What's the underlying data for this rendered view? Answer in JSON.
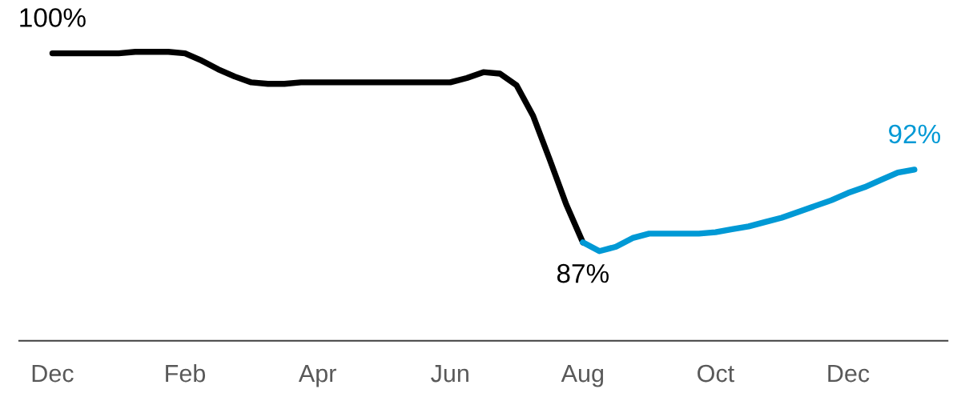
{
  "chart_data": {
    "type": "line",
    "categories": [
      "Dec",
      null,
      null,
      null,
      null,
      null,
      null,
      null,
      "Feb",
      null,
      null,
      null,
      null,
      null,
      null,
      null,
      "Apr",
      null,
      null,
      null,
      null,
      null,
      null,
      null,
      "Jun",
      null,
      null,
      null,
      null,
      null,
      null,
      null,
      "Aug",
      null,
      null,
      null,
      null,
      null,
      null,
      null,
      "Oct",
      null,
      null,
      null,
      null,
      null,
      null,
      null,
      "Dec",
      null,
      null,
      null,
      null
    ],
    "series": [
      {
        "color": "#000000",
        "values": [
          100,
          100,
          100,
          100,
          100,
          100.1,
          100.1,
          100.1,
          100.0,
          99.5,
          98.9,
          98.4,
          98.0,
          97.9,
          97.9,
          98.0,
          98.0,
          98.0,
          98.0,
          98.0,
          98.0,
          98.0,
          98.0,
          98.0,
          98.0,
          98.3,
          98.7,
          98.6,
          97.8,
          95.7,
          92.7,
          89.6,
          87,
          null,
          null,
          null,
          null,
          null,
          null,
          null,
          null,
          null,
          null,
          null,
          null,
          null,
          null,
          null,
          null,
          null,
          null,
          null,
          null
        ],
        "value_labels": [
          "100%",
          null,
          null,
          null,
          null,
          null,
          null,
          null,
          null,
          null,
          null,
          null,
          null,
          null,
          null,
          null,
          null,
          null,
          null,
          null,
          null,
          null,
          null,
          null,
          null,
          null,
          null,
          null,
          null,
          null,
          null,
          null,
          "87%",
          null,
          null,
          null,
          null,
          null,
          null,
          null,
          null,
          null,
          null,
          null,
          null,
          null,
          null,
          null,
          null,
          null,
          null,
          null,
          null
        ]
      },
      {
        "color": "#0099d5",
        "values": [
          null,
          null,
          null,
          null,
          null,
          null,
          null,
          null,
          null,
          null,
          null,
          null,
          null,
          null,
          null,
          null,
          null,
          null,
          null,
          null,
          null,
          null,
          null,
          null,
          null,
          null,
          null,
          null,
          null,
          null,
          null,
          null,
          87,
          86.4,
          86.7,
          87.3,
          87.6,
          87.6,
          87.6,
          87.6,
          87.7,
          87.9,
          88.1,
          88.4,
          88.7,
          89.1,
          89.5,
          89.9,
          90.4,
          90.8,
          91.3,
          91.8,
          92
        ],
        "value_labels": [
          null,
          null,
          null,
          null,
          null,
          null,
          null,
          null,
          null,
          null,
          null,
          null,
          null,
          null,
          null,
          null,
          null,
          null,
          null,
          null,
          null,
          null,
          null,
          null,
          null,
          null,
          null,
          null,
          null,
          null,
          null,
          null,
          null,
          null,
          null,
          null,
          null,
          null,
          null,
          null,
          null,
          null,
          null,
          null,
          null,
          null,
          null,
          null,
          null,
          null,
          null,
          null,
          "92%"
        ]
      }
    ],
    "tick_labels": "x"
  }
}
